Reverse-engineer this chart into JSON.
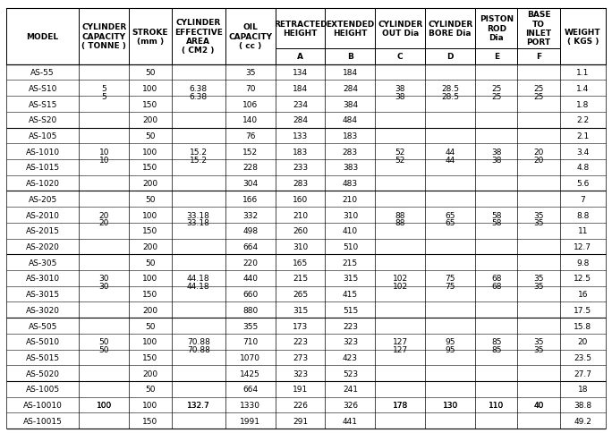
{
  "headers_row1": [
    "MODEL",
    "CYLINDER\nCAPACITY\n( TONNE )",
    "STROKE\n(mm )",
    "CYLINDER\nEFFECTIVE\nAREA\n( CM2 )",
    "OIL\nCAPACITY\n( cc )",
    "RETRACTED\nHEIGHT",
    "EXTENDED\nHEIGHT",
    "CYLINDER\nOUT Dia",
    "CYLINDER\nBORE Dia",
    "PISTON\nROD\nDia",
    "BASE\nTO\nINLET\nPORT",
    "WEIGHT\n( KGS )"
  ],
  "headers_row2": [
    "",
    "",
    "",
    "",
    "",
    "A",
    "B",
    "C",
    "D",
    "E",
    "F",
    ""
  ],
  "rows": [
    [
      "AS-55",
      "",
      "50",
      "",
      "35",
      "134",
      "184",
      "",
      "",
      "",
      "",
      "1.1"
    ],
    [
      "AS-S10",
      "5",
      "100",
      "6.38",
      "70",
      "184",
      "284",
      "38",
      "28.5",
      "25",
      "25",
      "1.4"
    ],
    [
      "AS-S15",
      "",
      "150",
      "",
      "106",
      "234",
      "384",
      "",
      "",
      "",
      "",
      "1.8"
    ],
    [
      "AS-S20",
      "",
      "200",
      "",
      "140",
      "284",
      "484",
      "",
      "",
      "",
      "",
      "2.2"
    ],
    [
      "AS-105",
      "",
      "50",
      "",
      "76",
      "133",
      "183",
      "",
      "",
      "",
      "",
      "2.1"
    ],
    [
      "AS-1010",
      "10",
      "100",
      "15.2",
      "152",
      "183",
      "283",
      "52",
      "44",
      "38",
      "20",
      "3.4"
    ],
    [
      "AS-1015",
      "",
      "150",
      "",
      "228",
      "233",
      "383",
      "",
      "",
      "",
      "",
      "4.8"
    ],
    [
      "AS-1020",
      "",
      "200",
      "",
      "304",
      "283",
      "483",
      "",
      "",
      "",
      "",
      "5.6"
    ],
    [
      "AS-205",
      "",
      "50",
      "",
      "166",
      "160",
      "210",
      "",
      "",
      "",
      "",
      "7"
    ],
    [
      "AS-2010",
      "20",
      "100",
      "33.18",
      "332",
      "210",
      "310",
      "88",
      "65",
      "58",
      "35",
      "8.8"
    ],
    [
      "AS-2015",
      "",
      "150",
      "",
      "498",
      "260",
      "410",
      "",
      "",
      "",
      "",
      "11"
    ],
    [
      "AS-2020",
      "",
      "200",
      "",
      "664",
      "310",
      "510",
      "",
      "",
      "",
      "",
      "12.7"
    ],
    [
      "AS-305",
      "",
      "50",
      "",
      "220",
      "165",
      "215",
      "",
      "",
      "",
      "",
      "9.8"
    ],
    [
      "AS-3010",
      "30",
      "100",
      "44.18",
      "440",
      "215",
      "315",
      "102",
      "75",
      "68",
      "35",
      "12.5"
    ],
    [
      "AS-3015",
      "",
      "150",
      "",
      "660",
      "265",
      "415",
      "",
      "",
      "",
      "",
      "16"
    ],
    [
      "AS-3020",
      "",
      "200",
      "",
      "880",
      "315",
      "515",
      "",
      "",
      "",
      "",
      "17.5"
    ],
    [
      "AS-505",
      "",
      "50",
      "",
      "355",
      "173",
      "223",
      "",
      "",
      "",
      "",
      "15.8"
    ],
    [
      "AS-5010",
      "50",
      "100",
      "70.88",
      "710",
      "223",
      "323",
      "127",
      "95",
      "85",
      "35",
      "20"
    ],
    [
      "AS-5015",
      "",
      "150",
      "",
      "1070",
      "273",
      "423",
      "",
      "",
      "",
      "",
      "23.5"
    ],
    [
      "AS-5020",
      "",
      "200",
      "",
      "1425",
      "323",
      "523",
      "",
      "",
      "",
      "",
      "27.7"
    ],
    [
      "AS-1005",
      "",
      "50",
      "",
      "664",
      "191",
      "241",
      "",
      "",
      "",
      "",
      "18"
    ],
    [
      "AS-10010",
      "100",
      "100",
      "132.7",
      "1330",
      "226",
      "326",
      "178",
      "130",
      "110",
      "40",
      "38.8"
    ],
    [
      "AS-10015",
      "",
      "150",
      "",
      "1991",
      "291",
      "441",
      "",
      "",
      "",
      "",
      "49.2"
    ]
  ],
  "group_borders": [
    0,
    4,
    8,
    12,
    16,
    20,
    23
  ],
  "bg_color": "#ffffff",
  "header_bg": "#ffffff",
  "border_color": "#000000",
  "text_color": "#000000",
  "font_size": 6.5,
  "header_font_size": 6.5
}
